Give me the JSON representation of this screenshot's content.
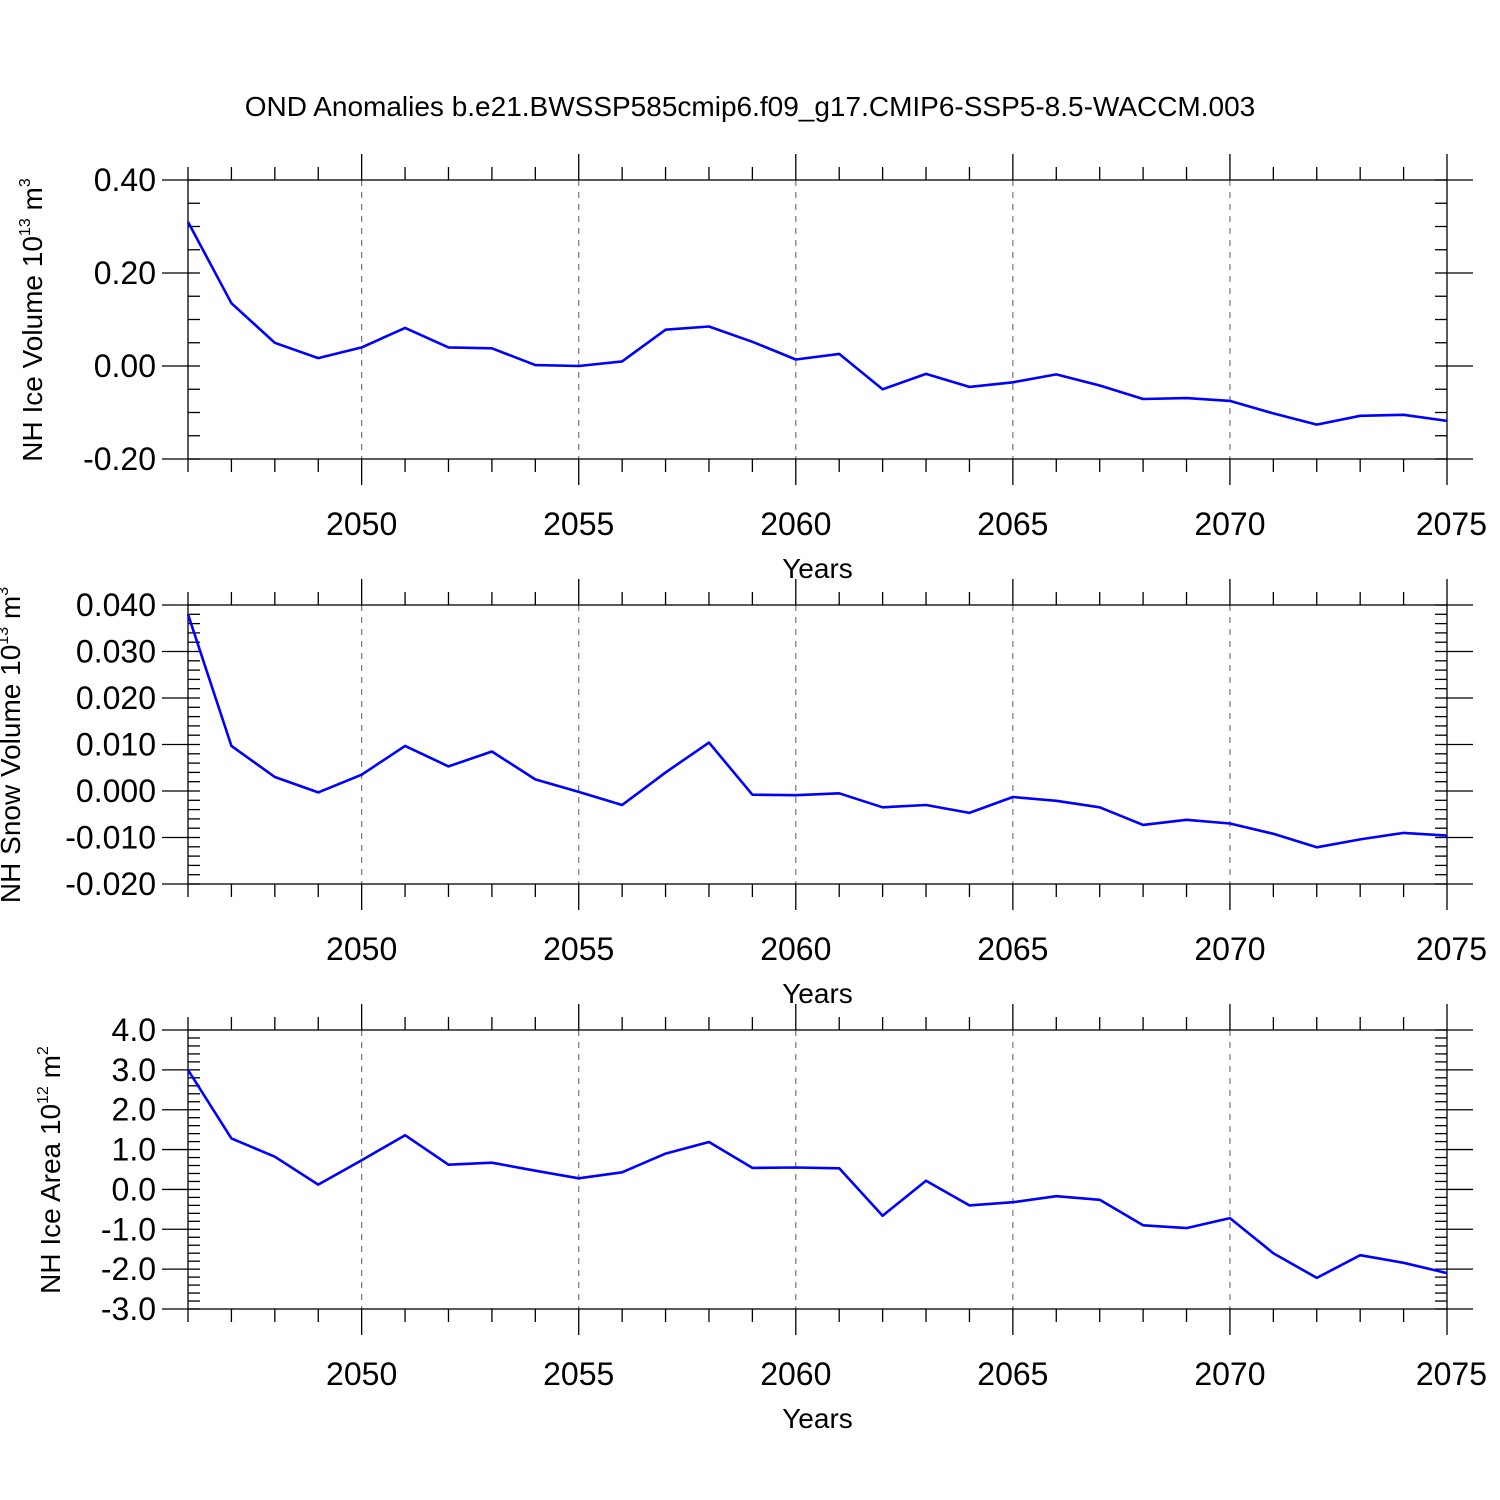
{
  "title": "OND Anomalies b.e21.BWSSP585cmip6.f09_g17.CMIP6-SSP5-8.5-WACCM.003",
  "colors": {
    "series": "#0000ff",
    "axis": "#000000",
    "grid": "#777777"
  },
  "chart_data": [
    {
      "type": "line",
      "ylabel_main": "NH Ice Volume 10",
      "ylabel_exp": "13",
      "ylabel_unit": " m",
      "ylabel_unit_exp": "3",
      "xlabel": "Years",
      "xlim": [
        2046,
        2075
      ],
      "ylim": [
        -0.2,
        0.4
      ],
      "yticks": [
        -0.2,
        0.0,
        0.2,
        0.4
      ],
      "ytick_labels": [
        "-0.20",
        "0.00",
        "0.20",
        "0.40"
      ],
      "yminor_step": 0.05,
      "xticks": [
        2050,
        2055,
        2060,
        2065,
        2070,
        2075
      ],
      "xtick_labels": [
        "2050",
        "2055",
        "2060",
        "2065",
        "2070",
        "2075"
      ],
      "grid_x": [
        2050,
        2055,
        2060,
        2065,
        2070
      ],
      "x": [
        2046,
        2047,
        2048,
        2049,
        2050,
        2051,
        2052,
        2053,
        2054,
        2055,
        2056,
        2057,
        2058,
        2059,
        2060,
        2061,
        2062,
        2063,
        2064,
        2065,
        2066,
        2067,
        2068,
        2069,
        2070,
        2071,
        2072,
        2073,
        2074,
        2075
      ],
      "values": [
        0.31,
        0.135,
        0.05,
        0.017,
        0.04,
        0.082,
        0.04,
        0.038,
        0.002,
        0.0,
        0.01,
        0.078,
        0.085,
        0.052,
        0.014,
        0.026,
        -0.05,
        -0.017,
        -0.045,
        -0.035,
        -0.018,
        -0.042,
        -0.071,
        -0.069,
        -0.075,
        -0.102,
        -0.126,
        -0.107,
        -0.105,
        -0.118
      ]
    },
    {
      "type": "line",
      "ylabel_main": "NH Snow Volume 10",
      "ylabel_exp": "13",
      "ylabel_unit": " m",
      "ylabel_unit_exp": "3",
      "xlabel": "Years",
      "xlim": [
        2046,
        2075
      ],
      "ylim": [
        -0.02,
        0.04
      ],
      "yticks": [
        -0.02,
        -0.01,
        0.0,
        0.01,
        0.02,
        0.03,
        0.04
      ],
      "ytick_labels": [
        "-0.020",
        "-0.010",
        "0.000",
        "0.010",
        "0.020",
        "0.030",
        "0.040"
      ],
      "yminor_step": 0.002,
      "xticks": [
        2050,
        2055,
        2060,
        2065,
        2070,
        2075
      ],
      "xtick_labels": [
        "2050",
        "2055",
        "2060",
        "2065",
        "2070",
        "2075"
      ],
      "grid_x": [
        2050,
        2055,
        2060,
        2065,
        2070
      ],
      "x": [
        2046,
        2047,
        2048,
        2049,
        2050,
        2051,
        2052,
        2053,
        2054,
        2055,
        2056,
        2057,
        2058,
        2059,
        2060,
        2061,
        2062,
        2063,
        2064,
        2065,
        2066,
        2067,
        2068,
        2069,
        2070,
        2071,
        2072,
        2073,
        2074,
        2075
      ],
      "values": [
        0.038,
        0.0097,
        0.003,
        -0.0003,
        0.0035,
        0.0097,
        0.0053,
        0.0085,
        0.0025,
        -0.0002,
        -0.003,
        0.004,
        0.0104,
        -0.0008,
        -0.0009,
        -0.0005,
        -0.0035,
        -0.003,
        -0.0047,
        -0.0013,
        -0.0021,
        -0.0035,
        -0.0073,
        -0.0062,
        -0.007,
        -0.0092,
        -0.0121,
        -0.0104,
        -0.009,
        -0.0096
      ]
    },
    {
      "type": "line",
      "ylabel_main": "NH Ice Area 10",
      "ylabel_exp": "12",
      "ylabel_unit": " m",
      "ylabel_unit_exp": "2",
      "xlabel": "Years",
      "xlim": [
        2046,
        2075
      ],
      "ylim": [
        -3.0,
        4.0
      ],
      "yticks": [
        -3,
        -2,
        -1,
        0,
        1,
        2,
        3,
        4
      ],
      "ytick_labels": [
        "-3.0",
        "-2.0",
        "-1.0",
        "0.0",
        "1.0",
        "2.0",
        "3.0",
        "4.0"
      ],
      "yminor_step": 0.2,
      "xticks": [
        2050,
        2055,
        2060,
        2065,
        2070,
        2075
      ],
      "xtick_labels": [
        "2050",
        "2055",
        "2060",
        "2065",
        "2070",
        "2075"
      ],
      "grid_x": [
        2050,
        2055,
        2060,
        2065,
        2070
      ],
      "x": [
        2046,
        2047,
        2048,
        2049,
        2050,
        2051,
        2052,
        2053,
        2054,
        2055,
        2056,
        2057,
        2058,
        2059,
        2060,
        2061,
        2062,
        2063,
        2064,
        2065,
        2066,
        2067,
        2068,
        2069,
        2070,
        2071,
        2072,
        2073,
        2074,
        2075
      ],
      "values": [
        3.0,
        1.28,
        0.82,
        0.12,
        0.73,
        1.36,
        0.62,
        0.67,
        0.47,
        0.28,
        0.43,
        0.9,
        1.19,
        0.54,
        0.55,
        0.53,
        -0.66,
        0.22,
        -0.4,
        -0.32,
        -0.17,
        -0.26,
        -0.9,
        -0.97,
        -0.72,
        -1.6,
        -2.22,
        -1.65,
        -1.84,
        -2.1
      ]
    }
  ]
}
